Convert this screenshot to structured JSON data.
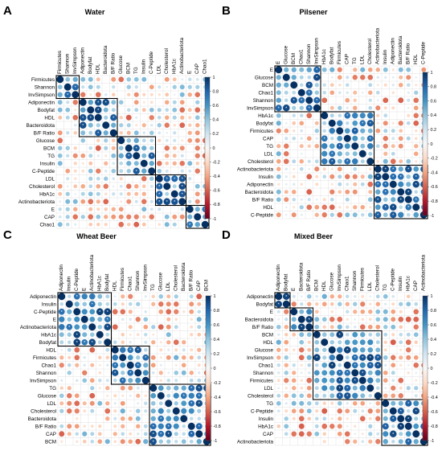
{
  "chart_data": [
    {
      "type": "heatmap",
      "panel_letter": "A",
      "title": "Water",
      "variables": [
        "Firmicutes",
        "Shannon",
        "InvSimpson",
        "Adiponectin",
        "Bodyfat",
        "HDL",
        "Bacteroidota",
        "B/F Ratio",
        "Glucose",
        "BCM",
        "TG",
        "Insulin",
        "C-Peptide",
        "LDL",
        "Cholesterol",
        "HbA1c",
        "Actinobacteriota",
        "E",
        "CAP",
        "Chao1"
      ],
      "clusters": [
        [
          0,
          2
        ],
        [
          3,
          7
        ],
        [
          8,
          12
        ],
        [
          13,
          16
        ],
        [
          17,
          19
        ]
      ],
      "colorbar_ticks": [
        "1",
        "0.8",
        "0.6",
        "0.4",
        "0.2",
        "0",
        "-0.2",
        "-0.4",
        "-0.6",
        "-0.8",
        "-1"
      ],
      "colorbar_range": [
        -1,
        1
      ],
      "significance_marker": "*"
    },
    {
      "type": "heatmap",
      "panel_letter": "B",
      "title": "Pilsener",
      "variables": [
        "E",
        "Glucose",
        "BCM",
        "Chao1",
        "Shannon",
        "InvSimpson",
        "HbA1c",
        "Bodyfat",
        "Firmicutes",
        "CAP",
        "TG",
        "LDL",
        "Cholesterol",
        "Actinobacteriota",
        "Insulin",
        "Adiponectin",
        "Bacteroidota",
        "B/F Ratio",
        "HDL",
        "C-Peptide"
      ],
      "clusters": [
        [
          0,
          5
        ],
        [
          6,
          12
        ],
        [
          13,
          19
        ]
      ],
      "colorbar_ticks": [
        "1",
        "0.8",
        "0.6",
        "0.4",
        "0.2",
        "0",
        "-0.2",
        "-0.4",
        "-0.6",
        "-0.8",
        "-1"
      ],
      "colorbar_range": [
        -1,
        1
      ],
      "significance_marker": "*"
    },
    {
      "type": "heatmap",
      "panel_letter": "C",
      "title": "Wheat Beer",
      "variables": [
        "Adiponectin",
        "Insulin",
        "C-Peptide",
        "E",
        "Actinobacteriota",
        "HbA1c",
        "Bodyfat",
        "HDL",
        "Firmicutes",
        "Chao1",
        "Shannon",
        "InvSimpson",
        "TG",
        "Glucose",
        "LDL",
        "Cholesterol",
        "Bacteroidota",
        "B/F Ratio",
        "CAP",
        "BCM"
      ],
      "clusters": [
        [
          0,
          6
        ],
        [
          7,
          11
        ],
        [
          12,
          19
        ]
      ],
      "colorbar_ticks": [
        "1",
        "0.8",
        "0.6",
        "0.4",
        "0.2",
        "0",
        "-0.2",
        "-0.4",
        "-0.6",
        "-0.8",
        "-1"
      ],
      "colorbar_range": [
        -1,
        1
      ],
      "significance_marker": "*"
    },
    {
      "type": "heatmap",
      "panel_letter": "D",
      "title": "Mixed Beer",
      "variables": [
        "Adiponectin",
        "Bodyfat",
        "E",
        "Bacteroidota",
        "B/F Ratio",
        "BCM",
        "HDL",
        "Glucose",
        "InvSimpson",
        "Chao1",
        "Shannon",
        "Firmicutes",
        "LDL",
        "Cholesterol",
        "TG",
        "C-Peptide",
        "Insulin",
        "HbA1c",
        "CAP",
        "Actinobacteriota"
      ],
      "clusters": [
        [
          0,
          1
        ],
        [
          2,
          4
        ],
        [
          5,
          13
        ],
        [
          14,
          19
        ]
      ],
      "colorbar_ticks": [
        "1",
        "0.8",
        "0.6",
        "0.4",
        "0.2",
        "0",
        "-0.2",
        "-0.4",
        "-0.6",
        "-0.8",
        "-1"
      ],
      "colorbar_range": [
        -1,
        1
      ],
      "significance_marker": "*"
    }
  ]
}
